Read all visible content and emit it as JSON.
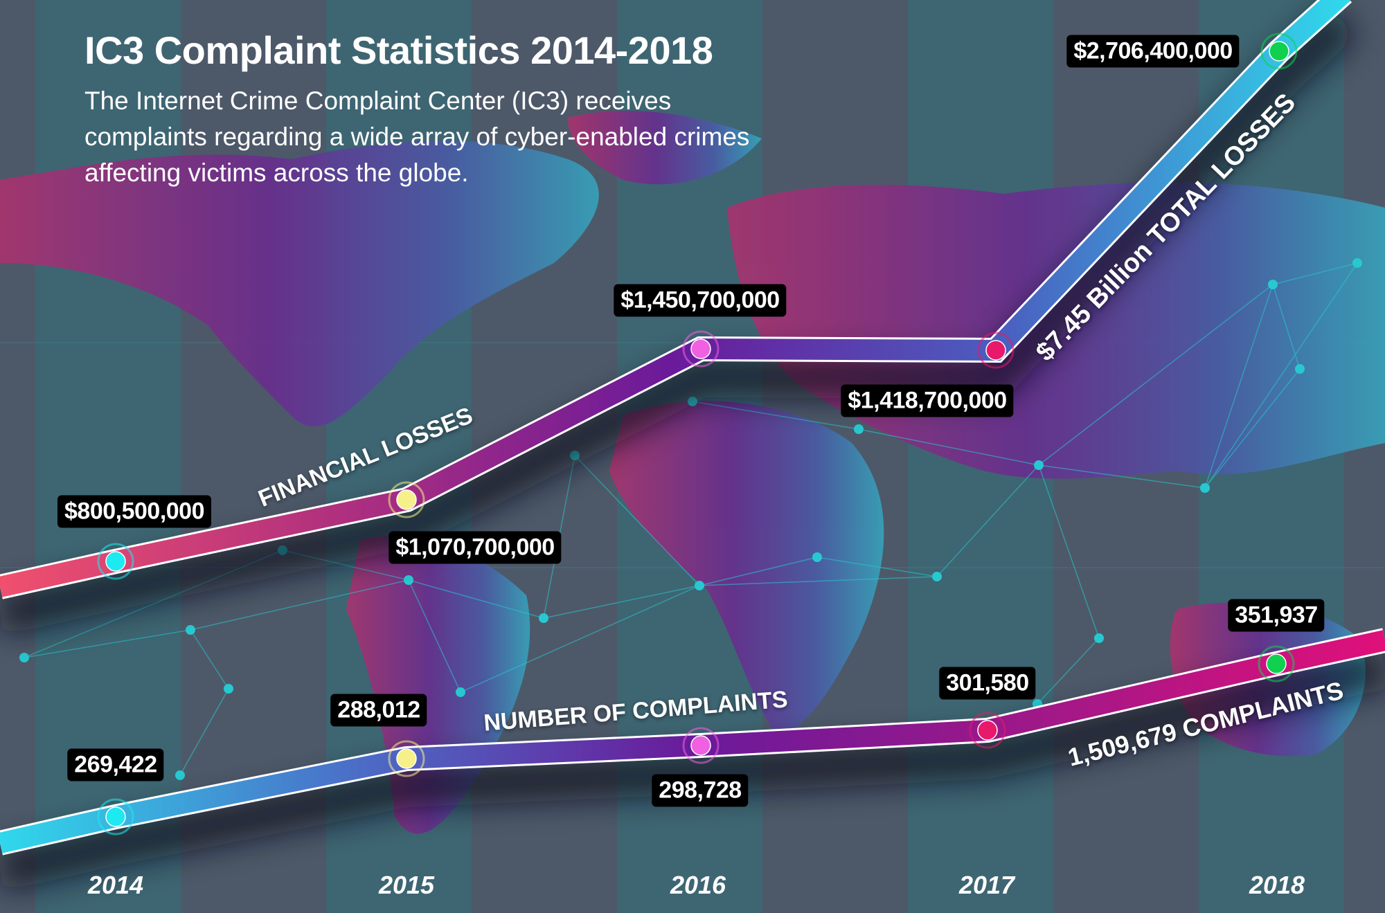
{
  "header": {
    "title": "IC3 Complaint Statistics 2014-2018",
    "description": "The Internet Crime Complaint Center (IC3) receives complaints regarding a wide array of cyber-enabled crimes affecting victims across the globe."
  },
  "chart_data": {
    "type": "line",
    "title": "IC3 Complaint Statistics 2014-2018",
    "categories": [
      "2014",
      "2015",
      "2016",
      "2017",
      "2018"
    ],
    "grid": false,
    "legend": "none",
    "series": [
      {
        "name": "FINANCIAL LOSSES",
        "values": [
          800500000,
          1070700000,
          1450700000,
          1418700000,
          2706400000
        ],
        "labels": [
          "$800,500,000",
          "$1,070,700,000",
          "$1,450,700,000",
          "$1,418,700,000",
          "$2,706,400,000"
        ],
        "total_label": "$7.45 Billion TOTAL LOSSES",
        "colors": [
          "#f0506e",
          "#b0307e",
          "#6a1a9a",
          "#4a60c0",
          "#30d8ec"
        ]
      },
      {
        "name": "NUMBER OF COMPLAINTS",
        "values": [
          269422,
          288012,
          298728,
          301580,
          351937
        ],
        "labels": [
          "269,422",
          "288,012",
          "298,728",
          "301,580",
          "351,937"
        ],
        "total_label": "1,509,679 COMPLAINTS",
        "colors": [
          "#30d8ec",
          "#4a70c8",
          "#6a1a9a",
          "#a01888",
          "#e0107a"
        ]
      }
    ],
    "point_colors": [
      "#1de9f0",
      "#f5f08a",
      "#f060e0",
      "#e8186a",
      "#10d050"
    ]
  }
}
